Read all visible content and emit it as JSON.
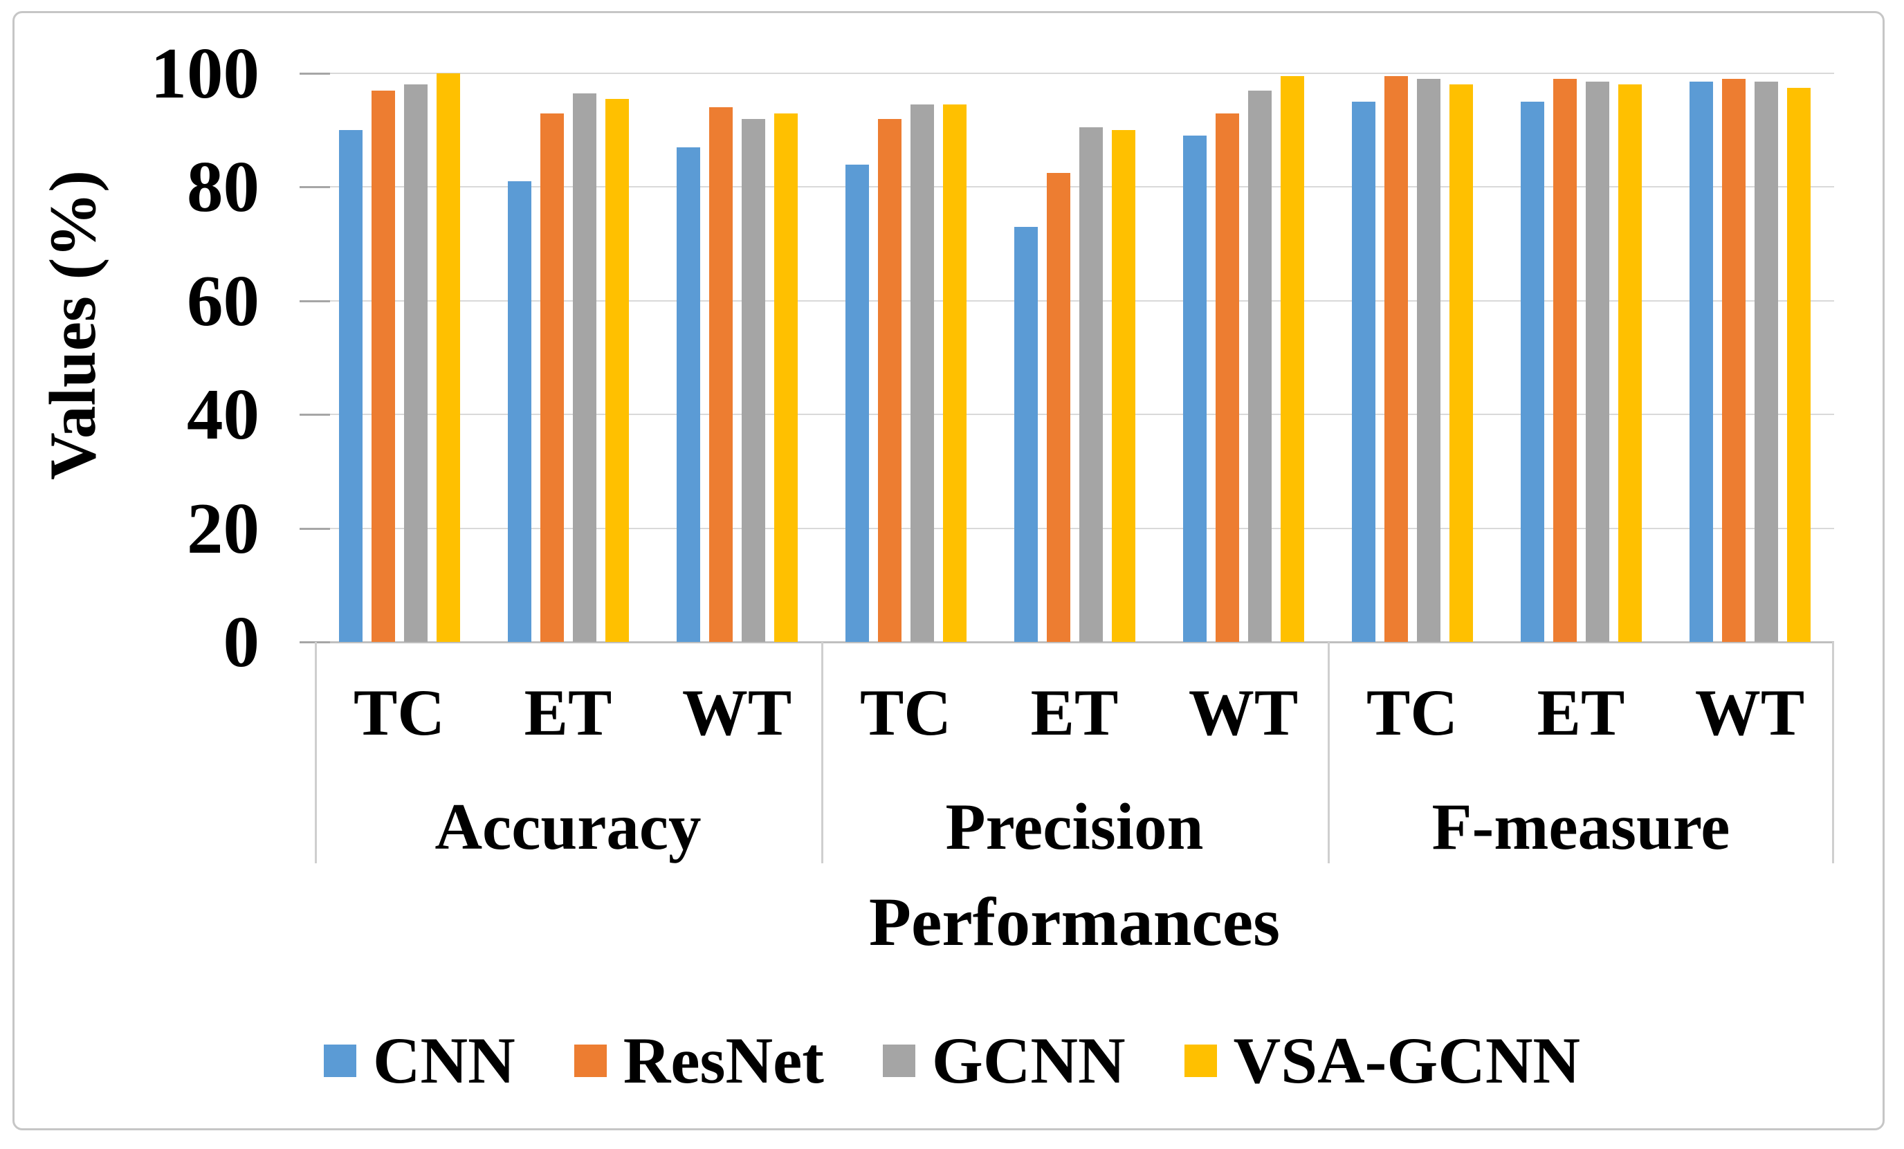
{
  "chart_data": {
    "type": "bar",
    "title": "",
    "xlabel": "Performances",
    "ylabel": "Values (%)",
    "ylim": [
      0,
      100
    ],
    "yticks": [
      0,
      20,
      40,
      60,
      80,
      100
    ],
    "grid": true,
    "legend_position": "bottom",
    "group_labels": [
      "TC",
      "ET",
      "WT",
      "TC",
      "ET",
      "WT",
      "TC",
      "ET",
      "WT"
    ],
    "metric_labels": [
      "Accuracy",
      "Precision",
      "F-measure"
    ],
    "series": [
      {
        "name": "CNN",
        "color": "#5B9BD5",
        "values": [
          90,
          81,
          87,
          84,
          73,
          89,
          95,
          95,
          98.5
        ]
      },
      {
        "name": "ResNet",
        "color": "#ED7D31",
        "values": [
          97,
          93,
          94,
          92,
          82.5,
          93,
          99.5,
          99,
          99
        ]
      },
      {
        "name": "GCNN",
        "color": "#A5A5A5",
        "values": [
          98,
          96.5,
          92,
          94.5,
          90.5,
          97,
          99,
          98.5,
          98.5
        ]
      },
      {
        "name": "VSA-GCNN",
        "color": "#FFC000",
        "values": [
          100,
          95.5,
          93,
          94.5,
          90,
          99.5,
          98,
          98,
          97.5
        ]
      }
    ]
  }
}
